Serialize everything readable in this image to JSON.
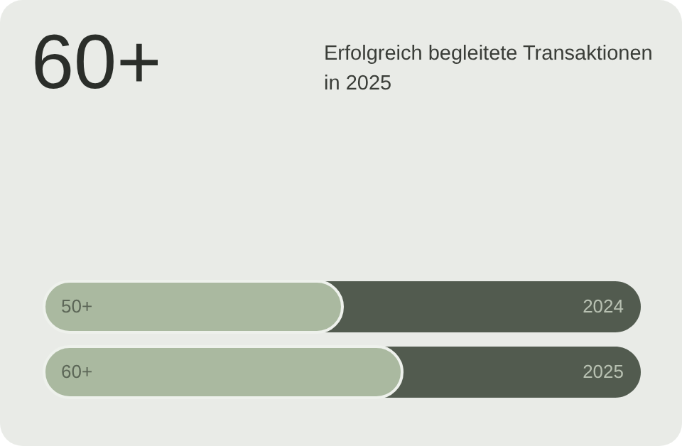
{
  "chart_data": {
    "type": "bar",
    "orientation": "horizontal",
    "title": "60+",
    "subtitle": "Erfolgreich begleitete Transaktionen in 2025",
    "categories": [
      "2024",
      "2025"
    ],
    "values": [
      50,
      60
    ],
    "value_labels": [
      "50+",
      "60+"
    ],
    "color": "#aab9a0",
    "xlim": [
      0,
      100
    ],
    "tick_labels": false
  }
}
